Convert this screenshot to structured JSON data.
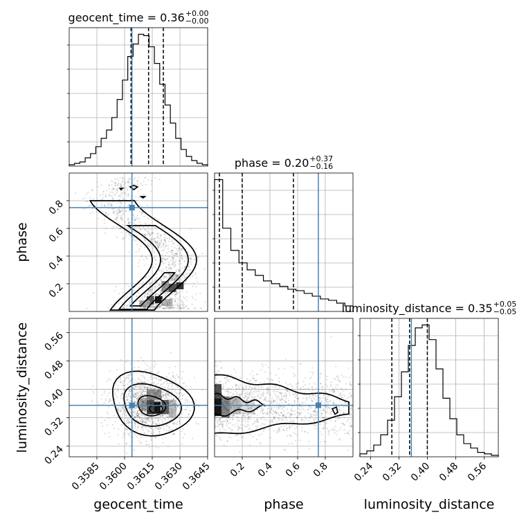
{
  "chart_data": {
    "type": "corner",
    "parameters": [
      {
        "name": "geocent_time",
        "median": 0.36,
        "plus": "0.00",
        "minus": "0.00",
        "range": [
          0.357,
          0.3645
        ],
        "ticks": [
          "0.3585",
          "0.3600",
          "0.3615",
          "0.3630",
          "0.3645"
        ],
        "quantiles": [
          0.36035,
          0.3613,
          0.3621
        ],
        "truth": 0.3604
      },
      {
        "name": "phase",
        "median": 0.2,
        "plus": "0.37",
        "minus": "0.16",
        "range": [
          0.0,
          1.0
        ],
        "ticks": [
          "0.2",
          "0.4",
          "0.6",
          "0.8"
        ],
        "quantiles": [
          0.035,
          0.2,
          0.57
        ],
        "truth": 0.75
      },
      {
        "name": "luminosity_distance",
        "median": 0.35,
        "plus": "0.05",
        "minus": "0.05",
        "range": [
          0.21,
          0.6
        ],
        "ticks": [
          "0.24",
          "0.32",
          "0.40",
          "0.48",
          "0.56"
        ],
        "quantiles": [
          0.3,
          0.35,
          0.4
        ],
        "truth": 0.355
      }
    ],
    "titles": [
      {
        "base": "geocent_time = 0.36",
        "sup": "+0.00",
        "sub": "−0.00"
      },
      {
        "base": "phase = 0.20",
        "sup": "+0.37",
        "sub": "−0.16"
      },
      {
        "base": "luminosity_distance = 0.35",
        "sup": "+0.05",
        "sub": "−0.05"
      }
    ],
    "histograms": {
      "geocent_time": [
        1,
        2,
        3,
        6,
        9,
        14,
        20,
        26,
        35,
        48,
        62,
        79,
        88,
        95,
        94,
        86,
        74,
        59,
        44,
        31,
        20,
        12,
        7,
        4,
        2,
        1
      ],
      "phase": [
        95,
        60,
        44,
        35,
        30,
        26,
        22,
        20,
        18,
        16,
        15,
        13,
        11,
        9,
        8,
        6,
        4
      ],
      "luminosity_distance": [
        2,
        4,
        8,
        15,
        25,
        41,
        58,
        76,
        88,
        90,
        80,
        60,
        40,
        26,
        15,
        9,
        6,
        3,
        2,
        1
      ]
    },
    "axis_labels": {
      "x": [
        "geocent_time",
        "phase",
        "luminosity_distance"
      ],
      "y": [
        "phase",
        "luminosity_distance"
      ]
    },
    "truth_color": "#4682b4",
    "grid": true
  }
}
